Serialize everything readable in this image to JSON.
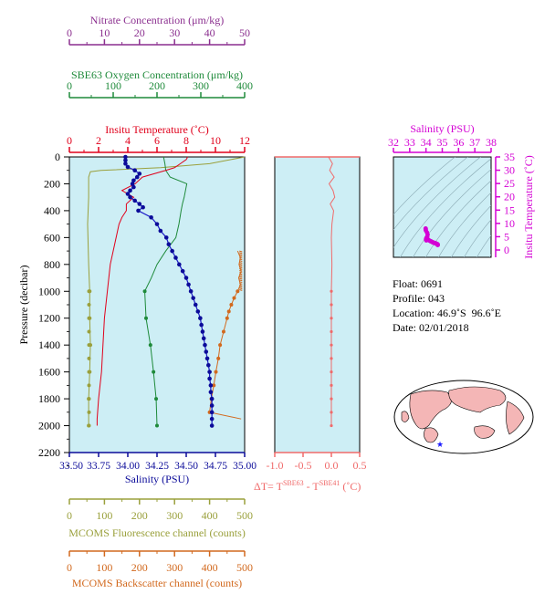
{
  "colors": {
    "nitrate": "#8b2f8f",
    "oxygen": "#1e8a3a",
    "temperature": "#e0001b",
    "salinity": "#1c1cc8",
    "salinity_dark": "#0b0b99",
    "fluorescence": "#9aa03c",
    "backscatter": "#d2691e",
    "delta_t": "#f06a6a",
    "ts_magenta": "#d400d4",
    "plot_bg": "#cdeef5",
    "land": "#f4b6b6"
  },
  "nitrate_axis": {
    "title": "Nitrate Concentration (μm/kg)",
    "ticks": [
      "0",
      "10",
      "20",
      "30",
      "40",
      "50"
    ]
  },
  "oxygen_axis": {
    "title": "SBE63 Oxygen Concentration (μm/kg)",
    "ticks": [
      "0",
      "100",
      "200",
      "300",
      "400"
    ]
  },
  "temperature_axis": {
    "title": "Insitu Temperature (˚C)",
    "ticks": [
      "0",
      "2",
      "4",
      "6",
      "8",
      "10",
      "12"
    ]
  },
  "pressure_axis": {
    "title": "Pressure (decibar)",
    "ticks": [
      "0",
      "200",
      "400",
      "600",
      "800",
      "1000",
      "1200",
      "1400",
      "1600",
      "1800",
      "2000",
      "2200"
    ]
  },
  "salinity_axis": {
    "title": "Salinity (PSU)",
    "ticks": [
      "33.50",
      "33.75",
      "34.00",
      "34.25",
      "34.50",
      "34.75",
      "35.00"
    ]
  },
  "fluorescence_axis": {
    "title": "MCOMS Fluorescence channel (counts)",
    "ticks": [
      "0",
      "100",
      "200",
      "300",
      "400",
      "500"
    ]
  },
  "backscatter_axis": {
    "title": "MCOMS Backscatter channel (counts)",
    "ticks": [
      "0",
      "100",
      "200",
      "300",
      "400",
      "500"
    ]
  },
  "delta_axis": {
    "ticks": [
      "-1.0",
      "-0.5",
      "0.0",
      "0.5"
    ],
    "label_prefix": "ΔT= T",
    "sup1": "SBE63",
    "label_mid": " - T",
    "sup2": "SBE41",
    "label_unit": " (˚C)"
  },
  "ts_panel": {
    "title": "Salinity (PSU)",
    "sal_ticks": [
      "32",
      "33",
      "34",
      "35",
      "36",
      "37",
      "38"
    ],
    "temp_ticks": [
      "0",
      "5",
      "10",
      "15",
      "20",
      "25",
      "30",
      "35"
    ],
    "temp_title": "Insitu Temperature (˚C)"
  },
  "info": {
    "float_label": "Float:",
    "float_value": "0691",
    "profile_label": "Profile:",
    "profile_value": "043",
    "location_label": "Location:",
    "location_value": "46.9˚S  96.6˚E",
    "date_label": "Date:",
    "date_value": "02/01/2018"
  },
  "chart_data": {
    "type": "line",
    "pressure_range": [
      0,
      2200
    ],
    "temperature_range": [
      0,
      12
    ],
    "salinity_range": [
      33.5,
      35.0
    ],
    "oxygen_range": [
      0,
      400
    ],
    "fluorescence_range": [
      0,
      500
    ],
    "backscatter_range": [
      0,
      500
    ],
    "series": [
      {
        "name": "Salinity",
        "p": [
          0,
          25,
          50,
          75,
          100,
          125,
          150,
          175,
          200,
          225,
          250,
          275,
          300,
          325,
          350,
          375,
          400,
          450,
          500,
          550,
          600,
          650,
          700,
          750,
          800,
          850,
          900,
          950,
          1000,
          1050,
          1100,
          1150,
          1200,
          1250,
          1300,
          1350,
          1400,
          1450,
          1500,
          1550,
          1600,
          1650,
          1700,
          1750,
          1800,
          1850,
          1900,
          1950,
          2000
        ],
        "values": [
          33.98,
          33.98,
          33.98,
          34.0,
          34.06,
          34.1,
          34.08,
          34.05,
          34.04,
          34.05,
          34.02,
          34.0,
          34.02,
          34.06,
          34.1,
          34.13,
          34.09,
          34.2,
          34.25,
          34.28,
          34.33,
          34.35,
          34.38,
          34.41,
          34.44,
          34.47,
          34.5,
          34.52,
          34.54,
          34.56,
          34.58,
          34.6,
          34.62,
          34.63,
          34.64,
          34.65,
          34.66,
          34.67,
          34.68,
          34.69,
          34.7,
          34.7,
          34.71,
          34.71,
          34.72,
          34.72,
          34.72,
          34.72,
          34.72
        ]
      },
      {
        "name": "Insitu Temperature",
        "p": [
          0,
          20,
          50,
          80,
          100,
          150,
          200,
          250,
          300,
          350,
          400,
          450,
          500,
          550,
          600,
          700,
          800,
          900,
          1000,
          1200,
          1400,
          1600,
          1800,
          1950,
          2000
        ],
        "values": [
          8.1,
          8.0,
          7.6,
          7.2,
          6.6,
          5.0,
          4.5,
          3.6,
          4.4,
          3.9,
          3.9,
          3.6,
          3.4,
          3.3,
          3.2,
          3.0,
          2.8,
          2.7,
          2.6,
          2.4,
          2.3,
          2.2,
          2.0,
          1.9,
          1.9
        ]
      },
      {
        "name": "Oxygen",
        "p": [
          0,
          50,
          100,
          150,
          200,
          250,
          300,
          350,
          400,
          500,
          600,
          700,
          800,
          900,
          1000,
          1200,
          1400,
          1600,
          1800,
          2000
        ],
        "values": [
          215,
          218,
          220,
          230,
          268,
          265,
          262,
          258,
          255,
          250,
          243,
          220,
          200,
          187,
          172,
          175,
          185,
          192,
          198,
          200
        ]
      },
      {
        "name": "Fluorescence",
        "p": [
          0,
          50,
          80,
          100,
          110,
          150,
          200,
          300,
          500,
          800,
          1000,
          1200,
          1400,
          1600,
          1800,
          2000
        ],
        "values": [
          500,
          400,
          260,
          90,
          60,
          55,
          55,
          55,
          52,
          55,
          58,
          58,
          60,
          58,
          55,
          55
        ]
      },
      {
        "name": "Backscatter",
        "p": [
          700,
          750,
          800,
          850,
          900,
          950,
          1000,
          1050,
          1100,
          1150,
          1200,
          1300,
          1400,
          1500,
          1600,
          1700,
          1800,
          1900,
          1950
        ],
        "values": [
          480,
          488,
          484,
          490,
          483,
          488,
          480,
          470,
          462,
          455,
          450,
          440,
          430,
          425,
          418,
          412,
          405,
          400,
          490
        ]
      },
      {
        "name": "Delta T",
        "p": [
          0,
          50,
          100,
          150,
          200,
          250,
          300,
          350,
          400,
          500,
          600,
          800,
          1000,
          1200,
          1400,
          1600,
          1800,
          2000
        ],
        "values": [
          -0.05,
          0.02,
          -0.03,
          0.05,
          -0.04,
          0.03,
          0.06,
          -0.02,
          0.04,
          0.01,
          0.0,
          0.01,
          0.0,
          0.0,
          0.0,
          0.0,
          0.0,
          0.0
        ]
      }
    ]
  }
}
